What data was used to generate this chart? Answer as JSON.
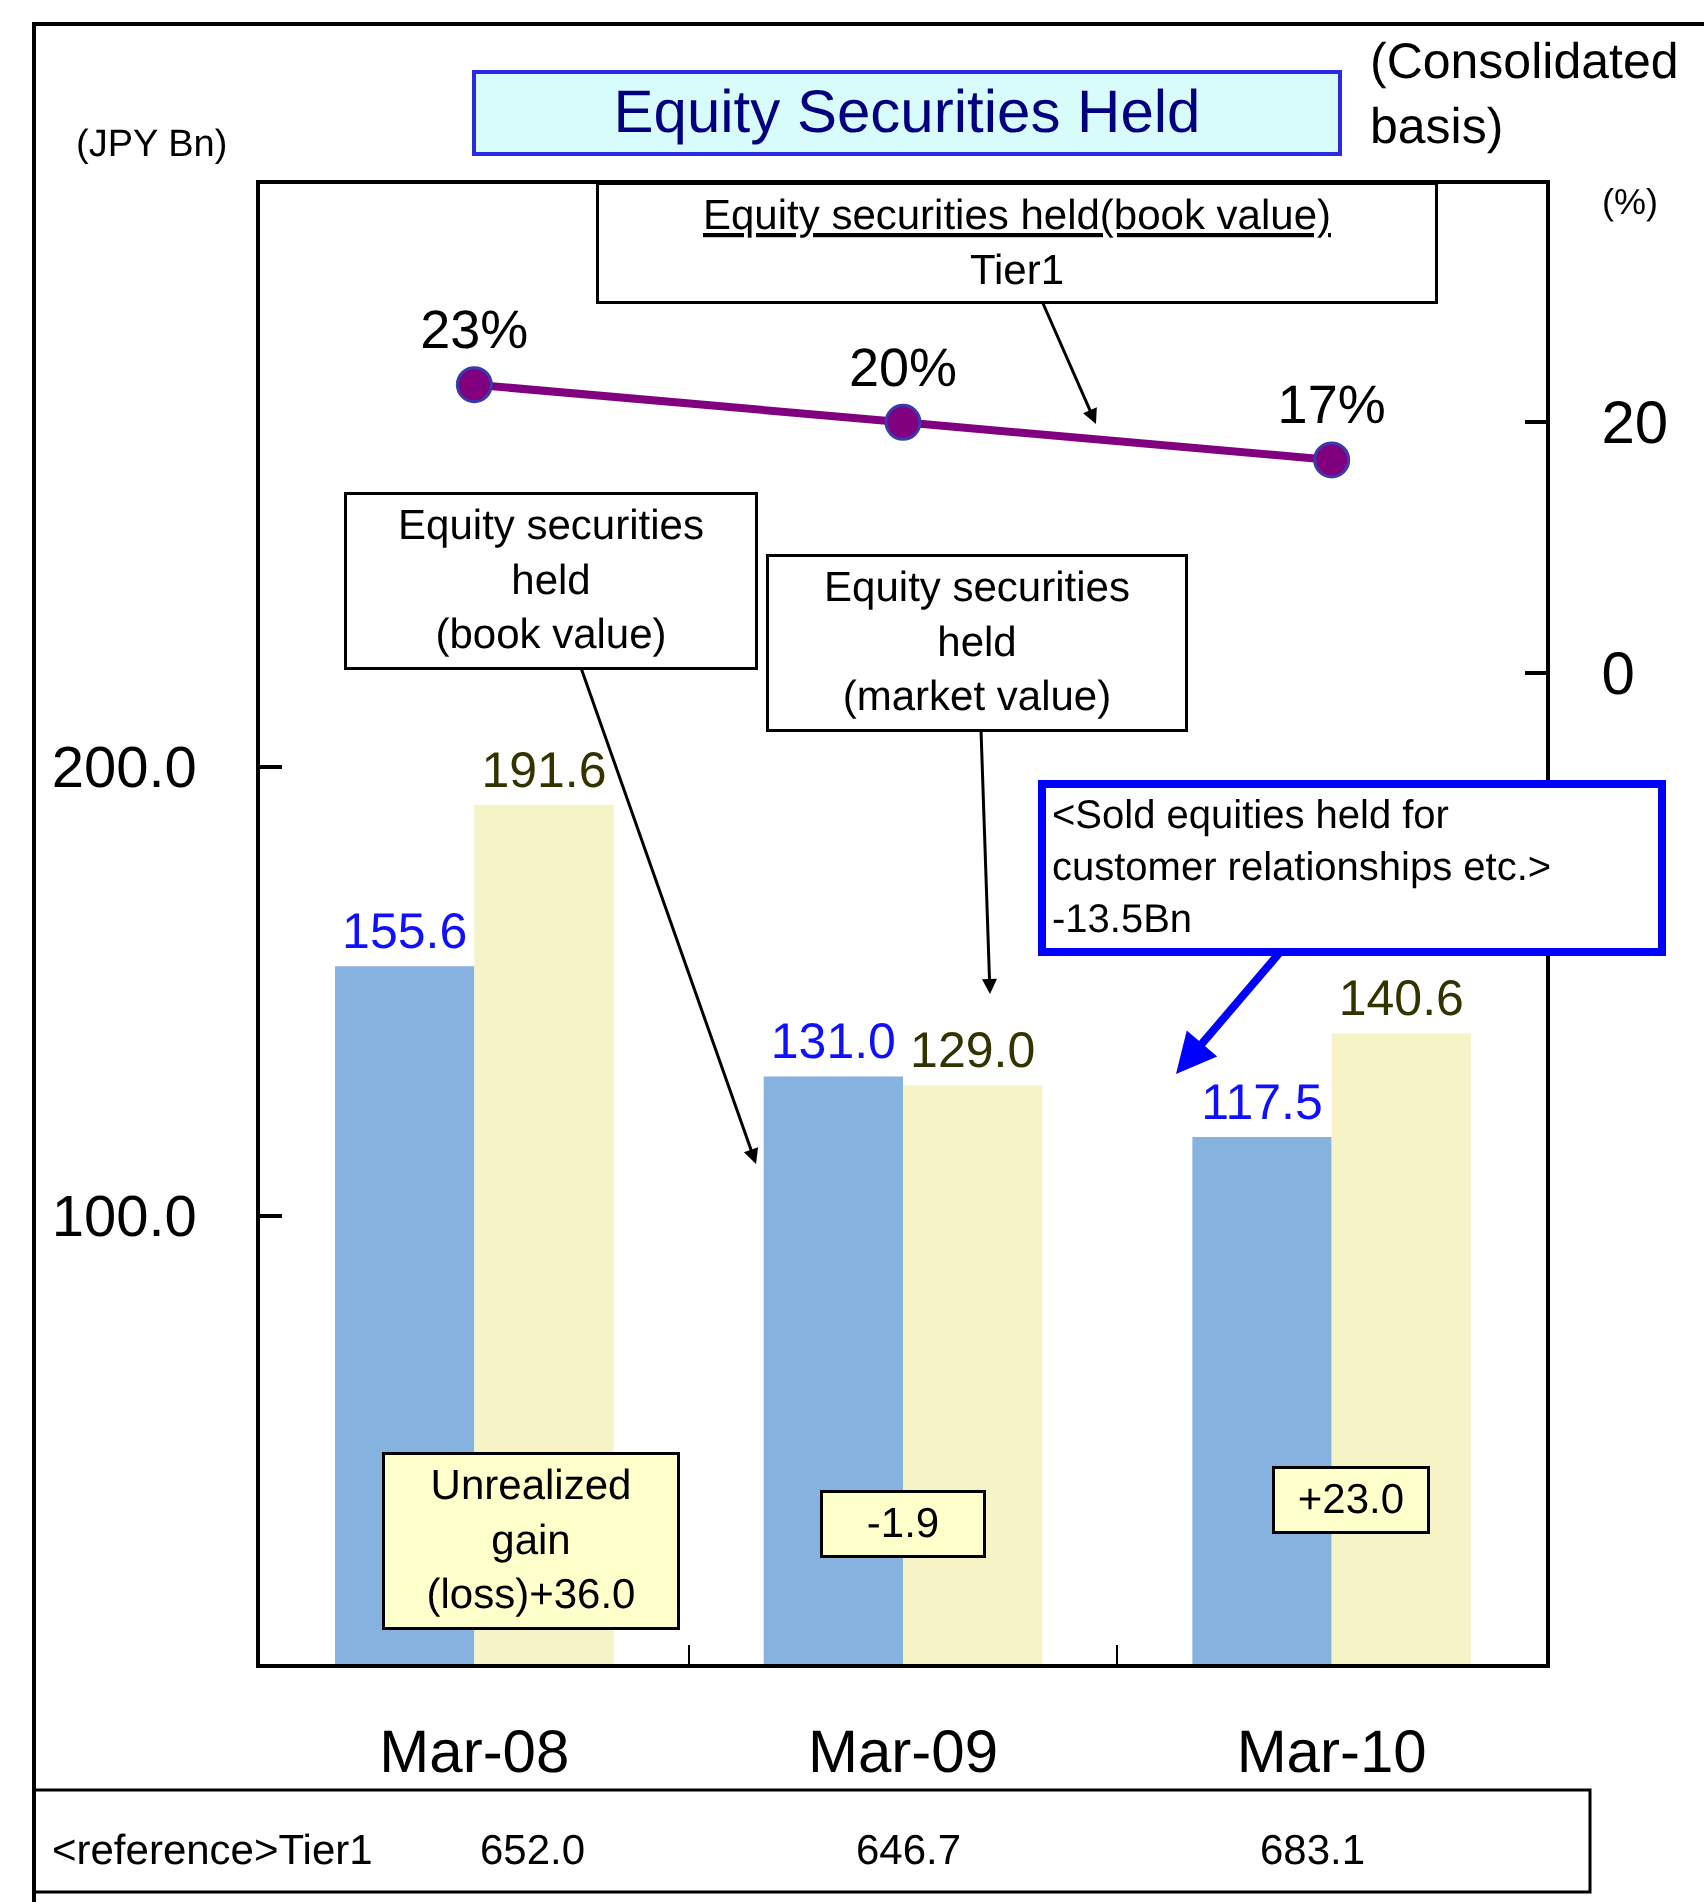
{
  "chart_data": {
    "type": "bar",
    "title": "Equity Securities Held",
    "ylabel": "(JPY Bn)",
    "y2label": "(%)",
    "categories": [
      "Mar-08",
      "Mar-09",
      "Mar-10"
    ],
    "series": [
      {
        "color": "#86b2e0",
        "values": [
          155.6,
          131.0,
          117.5
        ],
        "value_labels": [
          "155.6",
          "131.0",
          "117.5"
        ]
      },
      {
        "color": "#f6f3c6",
        "values": [
          191.6,
          129.0,
          140.6
        ],
        "value_labels": [
          "191.6",
          "129.0",
          "140.6"
        ]
      },
      {
        "type": "line",
        "axis": "y2",
        "color": "#800080",
        "values": [
          23,
          20,
          17
        ],
        "value_labels": [
          "23%",
          "20%",
          "17%"
        ],
        "marker": "circle",
        "line_style": "solid"
      }
    ],
    "ylim": [
      0,
      330
    ],
    "yticks": [
      {
        "value": 100,
        "label": "100.0"
      },
      {
        "value": 200,
        "label": "200.0"
      }
    ],
    "y2lim": [
      -79,
      39
    ],
    "y2ticks": [
      0,
      20
    ],
    "annotations": [
      "(Consolidated\nbasis)",
      "Equity securities held(book value)\nTier1",
      "Equity securities\nheld\n(book value)",
      "Equity securities\nheld\n(market value)",
      "<Sold equities held for\ncustomer relationships etc.>\n-13.5Bn",
      "Unrealized\ngain\n(loss)+36.0",
      "-1.9",
      "+23.0",
      "<reference>Tier1",
      "652.0",
      "646.7",
      "683.1"
    ]
  }
}
